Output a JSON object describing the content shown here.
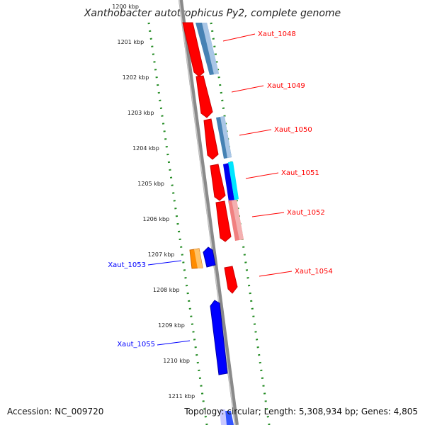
{
  "title": "Xanthobacter autotrophicus Py2, complete genome",
  "footer": {
    "accession": "Accession: NC_009720",
    "summary": "Topology: circular; Length: 5,308,934 bp; Genes: 4,805"
  },
  "colors": {
    "forward_strand": "#ff0000",
    "reverse_strand": "#0000ff",
    "backbone": "#888888",
    "tick": "#228B22"
  },
  "kbp_ticks": [
    "1200 kbp",
    "1201 kbp",
    "1202 kbp",
    "1203 kbp",
    "1204 kbp",
    "1205 kbp",
    "1206 kbp",
    "1207 kbp",
    "1208 kbp",
    "1209 kbp",
    "1210 kbp",
    "1211 kbp"
  ],
  "gene_labels": [
    {
      "text": "Xaut_1048",
      "side": "right"
    },
    {
      "text": "Xaut_1049",
      "side": "right"
    },
    {
      "text": "Xaut_1050",
      "side": "right"
    },
    {
      "text": "Xaut_1051",
      "side": "right"
    },
    {
      "text": "Xaut_1052",
      "side": "right"
    },
    {
      "text": "Xaut_1053",
      "side": "left"
    },
    {
      "text": "Xaut_1054",
      "side": "right"
    },
    {
      "text": "Xaut_1055",
      "side": "left"
    }
  ]
}
